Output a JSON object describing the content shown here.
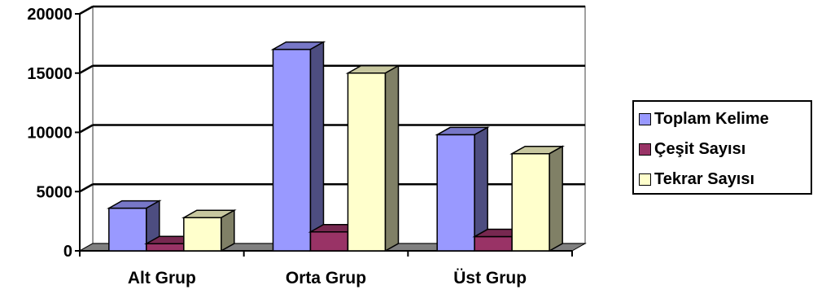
{
  "chart_data": {
    "type": "bar",
    "three_d": true,
    "categories": [
      "Alt Grup",
      "Orta Grup",
      "Üst Grup"
    ],
    "series": [
      {
        "name": "Toplam Kelime",
        "values": [
          3600,
          17000,
          9800
        ],
        "color": "#9999ff"
      },
      {
        "name": "Çeşit Sayısı",
        "values": [
          600,
          1600,
          1200
        ],
        "color": "#993366"
      },
      {
        "name": "Tekrar Sayısı",
        "values": [
          2800,
          15000,
          8200
        ],
        "color": "#ffffcc"
      }
    ],
    "ylim": [
      0,
      20000
    ],
    "yticks": [
      "0",
      "5000",
      "10000",
      "15000",
      "20000"
    ],
    "grid": true,
    "legend": "right"
  }
}
